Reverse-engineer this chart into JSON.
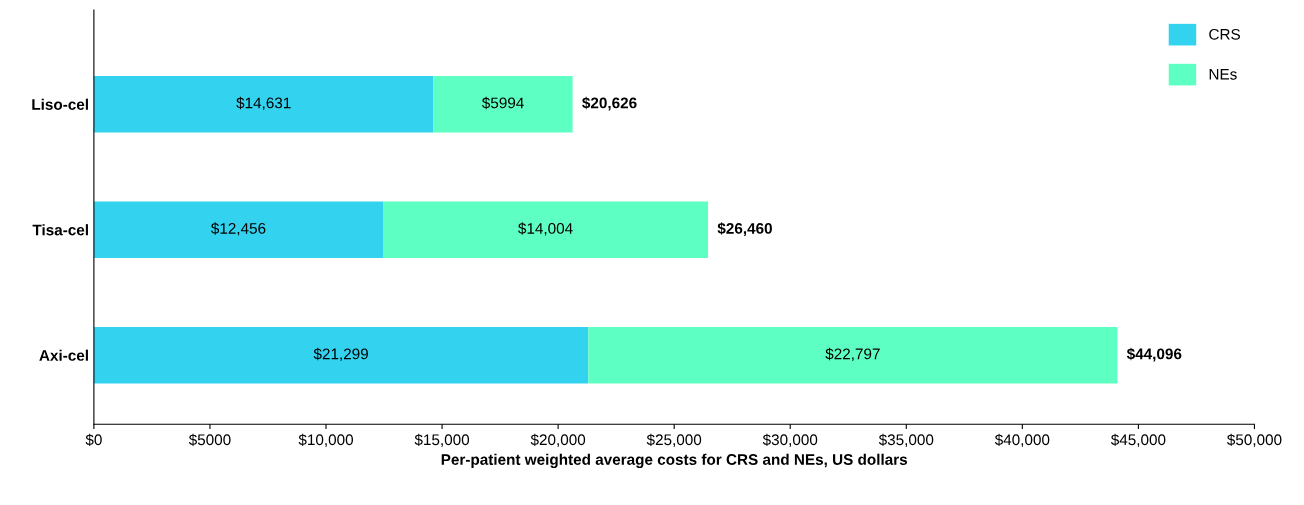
{
  "chart_data": {
    "type": "bar",
    "orientation": "horizontal",
    "stacked": true,
    "xlabel": "Per-patient weighted average costs for CRS and NEs, US dollars",
    "categories": [
      "Liso-cel",
      "Tisa-cel",
      "Axi-cel"
    ],
    "series": [
      {
        "name": "CRS",
        "color": "#33d3f0",
        "values": [
          14631,
          12456,
          21299
        ],
        "value_labels": [
          "$14,631",
          "$12,456",
          "$21,299"
        ]
      },
      {
        "name": "NEs",
        "color": "#5effc2",
        "values": [
          5994,
          14004,
          22797
        ],
        "value_labels": [
          "$5994",
          "$14,004",
          "$22,797"
        ]
      }
    ],
    "totals": [
      "$20,626",
      "$26,460",
      "$44,096"
    ],
    "xlim": [
      0,
      50000
    ],
    "xticks": [
      {
        "value": 0,
        "label": "$0"
      },
      {
        "value": 5000,
        "label": "$5000"
      },
      {
        "value": 10000,
        "label": "$10,000"
      },
      {
        "value": 15000,
        "label": "$15,000"
      },
      {
        "value": 20000,
        "label": "$20,000"
      },
      {
        "value": 25000,
        "label": "$25,000"
      },
      {
        "value": 30000,
        "label": "$30,000"
      },
      {
        "value": 35000,
        "label": "$35,000"
      },
      {
        "value": 40000,
        "label": "$40,000"
      },
      {
        "value": 45000,
        "label": "$45,000"
      },
      {
        "value": 50000,
        "label": "$50,000"
      }
    ],
    "grid": false,
    "legend": "top right"
  }
}
